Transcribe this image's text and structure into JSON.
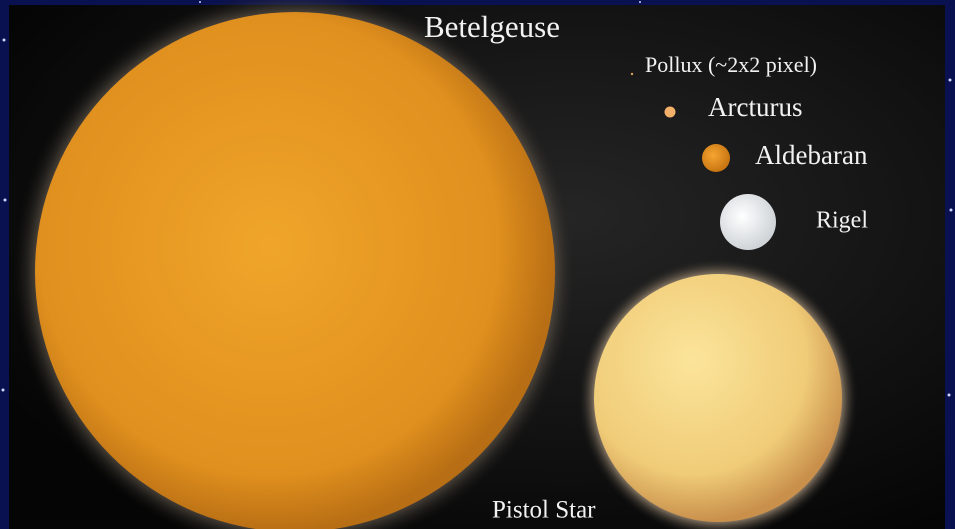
{
  "labels": [
    "Betelgeuse",
    "Pollux (~2x2 pixel)",
    "Arcturus",
    "Aldebaran",
    "Rigel",
    "Pistol Star"
  ]
}
